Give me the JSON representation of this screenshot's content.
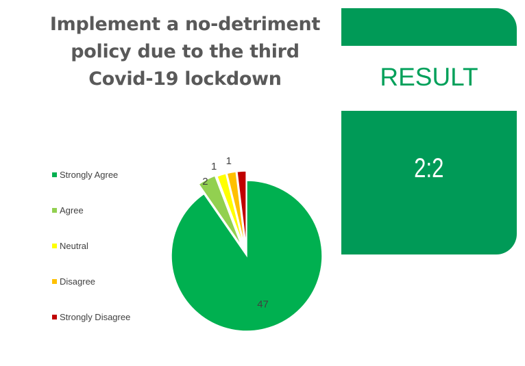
{
  "title_lines": [
    "Implement a no-detriment",
    "policy due to the third",
    "Covid-19 lockdown"
  ],
  "result": {
    "label": "RESULT",
    "value": "2:2"
  },
  "colors": {
    "panel": "#009A57",
    "result_text": "#00A05A"
  },
  "chart_data": {
    "type": "pie",
    "title": "Implement a no-detriment policy due to the third Covid-19 lockdown",
    "legend_position": "left",
    "slices": [
      {
        "label": "Strongly Agree",
        "value": 47,
        "color": "#00B050"
      },
      {
        "label": "Agree",
        "value": 2,
        "color": "#92D050"
      },
      {
        "label": "Neutral",
        "value": 1,
        "color": "#FFFF00"
      },
      {
        "label": "Disagree",
        "value": 1,
        "color": "#FFC000"
      },
      {
        "label": "Strongly Disagree",
        "value": 1,
        "color": "#C00000"
      }
    ],
    "data_labels": [
      "47",
      "2",
      "1",
      "1",
      ""
    ]
  }
}
